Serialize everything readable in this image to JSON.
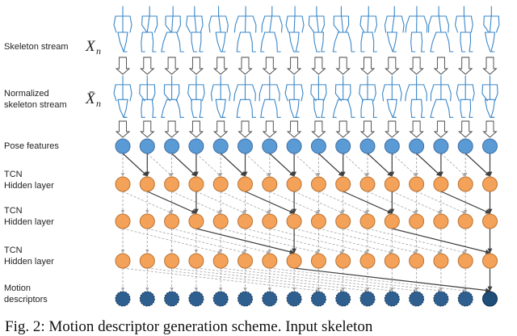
{
  "labels": {
    "skeleton_stream": "Skeleton stream",
    "normalized_line1": "Normalized",
    "normalized_line2": "skeleton stream",
    "pose_features": "Pose features",
    "tcn1_line1": "TCN",
    "tcn1_line2": "Hidden layer",
    "tcn2_line1": "TCN",
    "tcn2_line2": "Hidden layer",
    "tcn3_line1": "TCN",
    "tcn3_line2": "Hidden layer",
    "motion_line1": "Motion",
    "motion_line2": "descriptors"
  },
  "math": {
    "x_symbol": "X",
    "x_subscript": "n",
    "xbar_symbol": "X̄",
    "xbar_subscript": "n"
  },
  "caption": "Fig. 2: Motion descriptor generation scheme. Input skeleton",
  "colors": {
    "skeleton": "#3b87c8",
    "pose_node": "#5b9bd5",
    "hidden_node": "#f4a259",
    "descriptor_node": "#2e5f8f",
    "descriptor_final": "#1f4e79",
    "edge_active": "#404040",
    "edge_dashed": "#a6a6a6"
  },
  "diagram": {
    "timesteps": 16,
    "dilations": [
      1,
      2,
      4,
      8
    ]
  }
}
